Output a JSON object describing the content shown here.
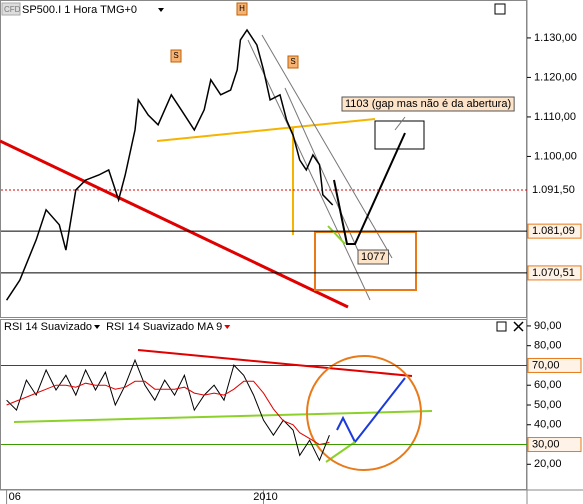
{
  "chart_data": [
    {
      "type": "line",
      "title": "SP500.I 1 Hora TMG+0",
      "x": [
        2,
        6,
        11,
        14,
        18,
        20,
        23,
        26,
        30,
        33,
        36,
        38,
        41,
        42,
        45,
        48,
        52,
        55,
        59,
        62,
        64,
        67,
        70,
        72,
        73,
        75,
        78,
        80,
        82,
        85,
        87,
        89,
        91,
        93,
        95,
        97,
        98,
        101
      ],
      "series": [
        {
          "color": "#000000",
          "values": [
            1063.6,
            1068.7,
            1078.9,
            1086.5,
            1082.7,
            1076.3,
            1091.5,
            1094,
            1095.3,
            1096.6,
            1089,
            1095.3,
            1106.7,
            1114.3,
            1110.5,
            1108,
            1115.6,
            1111.8,
            1106.7,
            1111.8,
            1119.4,
            1115.6,
            1116.8,
            1121.9,
            1129.5,
            1132,
            1128.2,
            1121.9,
            1114.3,
            1115.6,
            1109.2,
            1105.4,
            1099.1,
            1096.6,
            1100.4,
            1097.9,
            1090.3,
            1087.7
          ]
        }
      ],
      "xlim": [
        0,
        160
      ],
      "ylim": [
        1059.1,
        1139.6
      ],
      "yticks": [
        {
          "value": 1130,
          "label": "1.130,00"
        },
        {
          "value": 1120,
          "label": "1.120,00"
        },
        {
          "value": 1110,
          "label": "1.110,00"
        },
        {
          "value": 1100,
          "label": "1.100,00"
        }
      ],
      "hlines": [
        {
          "value": 1091.5,
          "label": "1.091,50",
          "color": "#e00000"
        },
        {
          "value": 1081.09,
          "label": "1.081,09",
          "color": "#000000"
        },
        {
          "value": 1070.51,
          "label": "1.070,51",
          "color": "#000000"
        }
      ],
      "patterns": [
        "S",
        "H",
        "S"
      ],
      "annotations": [
        "1103 (gap mas não é da abertura)",
        "1077"
      ]
    },
    {
      "type": "line",
      "x": [
        2,
        5,
        8,
        11,
        14,
        17,
        20,
        23,
        26,
        29,
        32,
        35,
        38,
        41,
        44,
        47,
        50,
        53,
        56,
        59,
        62,
        65,
        68,
        71,
        74,
        77,
        80,
        83,
        86,
        89,
        91,
        94,
        97,
        100
      ],
      "series": [
        {
          "name": "RSI 14 Suavizado",
          "color": "#000000",
          "values": [
            52.4,
            47.4,
            62.6,
            55,
            67.7,
            57.6,
            65,
            55,
            67.7,
            57.6,
            66.6,
            50,
            60,
            72.7,
            60,
            52.4,
            62.6,
            55,
            65,
            47.4,
            55,
            60,
            52.4,
            70.2,
            65,
            55,
            42.3,
            34.7,
            42.3,
            37.3,
            24.5,
            32.2,
            22,
            34.7
          ]
        },
        {
          "name": "RSI 14 Suavizado MA 9",
          "color": "#e00000",
          "values": [
            50,
            52,
            54,
            56,
            58,
            60,
            60,
            59,
            61,
            60,
            60,
            58,
            59,
            62,
            62,
            58,
            58,
            58,
            59,
            56,
            55,
            56,
            55,
            58,
            62,
            62,
            56,
            48,
            42,
            40,
            36,
            33,
            30,
            31
          ]
        }
      ],
      "xlim": [
        0,
        160
      ],
      "ylim": [
        8,
        93
      ],
      "yticks": [
        {
          "value": 90,
          "label": "90,00"
        },
        {
          "value": 80,
          "label": "80,00"
        },
        {
          "value": 60,
          "label": "60,00"
        },
        {
          "value": 50,
          "label": "50,00"
        },
        {
          "value": 40,
          "label": "40,00"
        },
        {
          "value": 20,
          "label": "20,00"
        }
      ],
      "hlines": [
        {
          "value": 70,
          "label": "70,00",
          "color": "#e00000"
        },
        {
          "value": 30,
          "label": "30,00",
          "color": "#3a9a00"
        }
      ],
      "xticks": [
        {
          "value": 2,
          "label": "06"
        },
        {
          "value": 80,
          "label": "2010"
        }
      ]
    }
  ]
}
